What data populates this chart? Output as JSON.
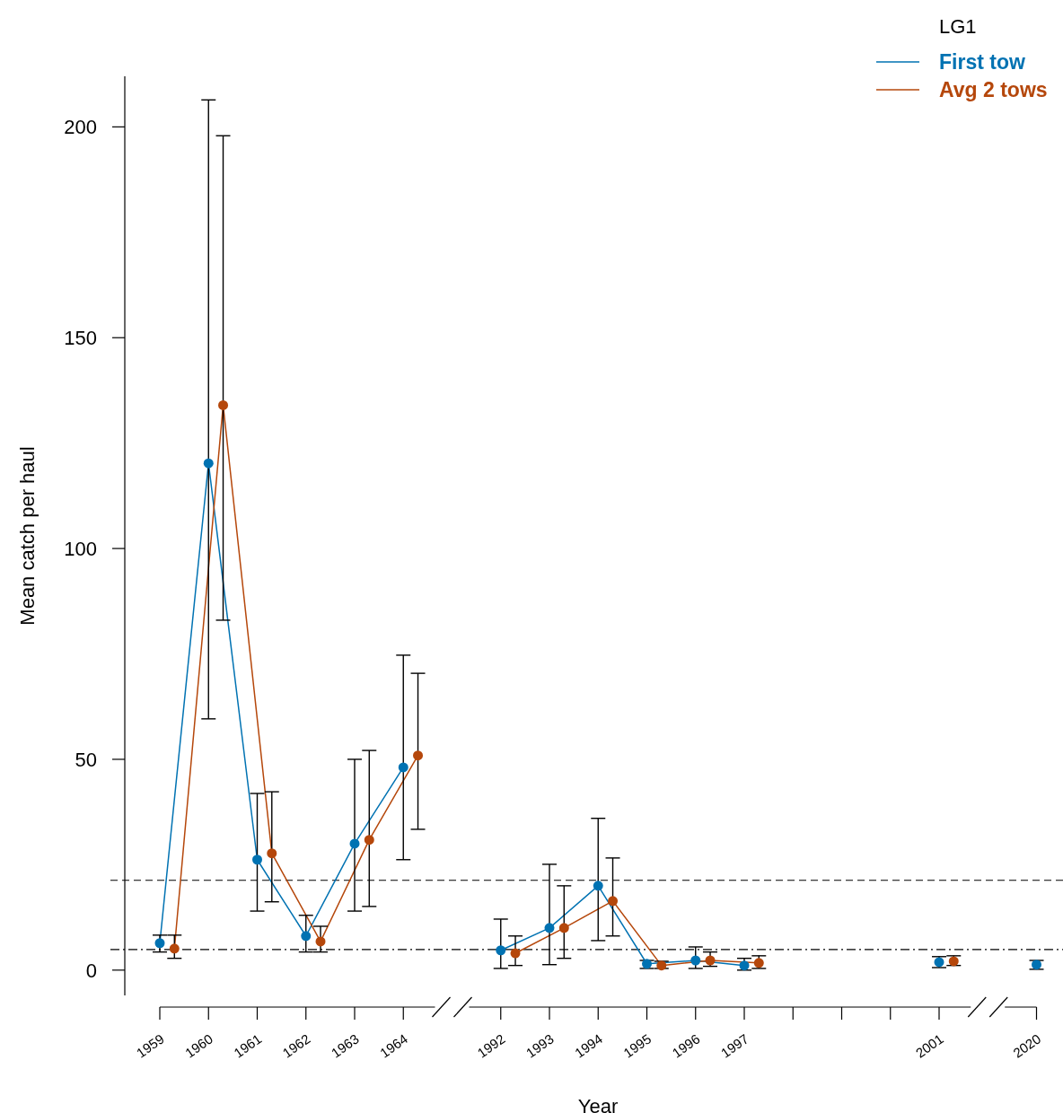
{
  "chart_data": {
    "type": "line",
    "xlabel": "Year",
    "ylabel": "Mean catch per haul",
    "legend_title": "LG1",
    "legend": "top right",
    "marker": "circle",
    "line_style": "solid",
    "categories": [
      "1959",
      "1960",
      "1961",
      "1962",
      "1963",
      "1964",
      null,
      "1992",
      "1993",
      "1994",
      "1995",
      "1996",
      "1997",
      null,
      null,
      null,
      "2001",
      null,
      "2020"
    ],
    "ylim": [
      -6,
      212
    ],
    "yticks": [
      0,
      50,
      100,
      150,
      200
    ],
    "series": [
      {
        "name": "First tow",
        "color": "#0072b2",
        "values": [
          6.4,
          120.2,
          26.2,
          8.1,
          30.0,
          48.1,
          null,
          4.7,
          10.0,
          20.0,
          1.5,
          2.3,
          1.1,
          null,
          null,
          null,
          1.9,
          null,
          1.3
        ],
        "errors": [
          [
            4.3,
            8.3
          ],
          [
            59.6,
            206.4
          ],
          [
            14.0,
            41.9
          ],
          [
            4.3,
            13.0
          ],
          [
            14.0,
            50.0
          ],
          [
            26.2,
            74.7
          ],
          null,
          [
            0.4,
            12.1
          ],
          [
            1.3,
            25.1
          ],
          [
            7.0,
            36.0
          ],
          [
            0.4,
            2.3
          ],
          [
            0.4,
            5.5
          ],
          [
            0,
            2.8
          ],
          null,
          null,
          null,
          [
            0.6,
            3.2
          ],
          null,
          [
            0.2,
            2.3
          ]
        ]
      },
      {
        "name": "Avg 2 tows",
        "color": "#b5470b",
        "values": [
          5.1,
          134.0,
          27.7,
          6.8,
          30.9,
          50.9,
          null,
          4.0,
          10.0,
          16.4,
          1.1,
          2.3,
          1.7,
          null,
          null,
          null,
          2.1,
          null,
          null
        ],
        "errors": [
          [
            2.8,
            8.3
          ],
          [
            83.0,
            197.9
          ],
          [
            16.2,
            42.3
          ],
          [
            4.3,
            10.4
          ],
          [
            15.1,
            52.1
          ],
          [
            33.4,
            70.4
          ],
          null,
          [
            1.1,
            8.1
          ],
          [
            2.8,
            20.0
          ],
          [
            8.1,
            26.6
          ],
          [
            0.4,
            2.1
          ],
          [
            0.9,
            4.3
          ],
          [
            0.4,
            3.4
          ],
          null,
          null,
          null,
          [
            1.1,
            3.4
          ],
          null,
          null
        ]
      }
    ],
    "ref_lines": [
      {
        "axis": "y",
        "value": 21.3,
        "line_style": "dashed"
      },
      {
        "axis": "y",
        "value": 4.9,
        "line_style": "dashdot"
      }
    ]
  }
}
